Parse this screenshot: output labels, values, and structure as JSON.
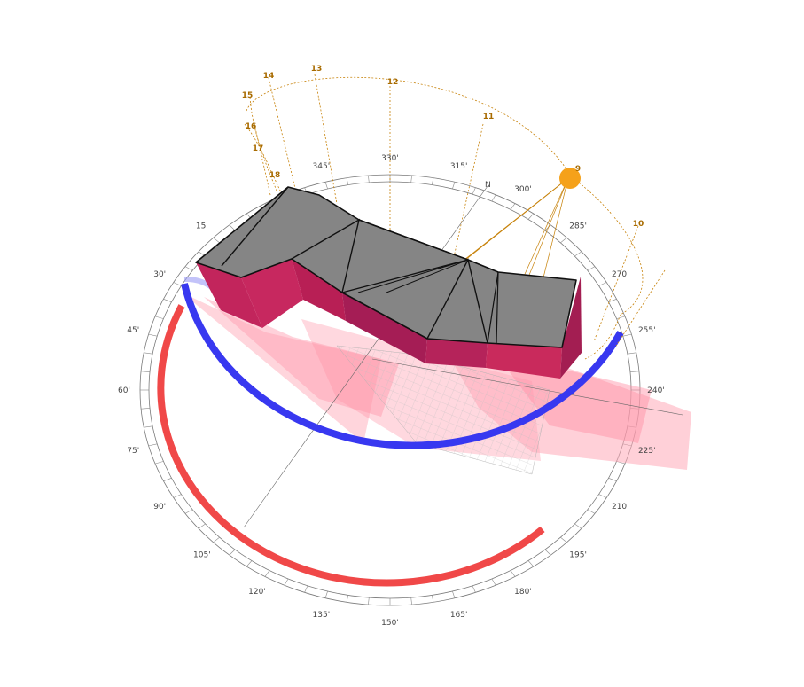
{
  "compass": {
    "north_label": "N",
    "degree_labels": [
      {
        "deg": 15,
        "text": "15'"
      },
      {
        "deg": 30,
        "text": "30'"
      },
      {
        "deg": 45,
        "text": "45'"
      },
      {
        "deg": 60,
        "text": "60'"
      },
      {
        "deg": 75,
        "text": "75'"
      },
      {
        "deg": 90,
        "text": "90'"
      },
      {
        "deg": 105,
        "text": "105'"
      },
      {
        "deg": 120,
        "text": "120'"
      },
      {
        "deg": 135,
        "text": "135'"
      },
      {
        "deg": 150,
        "text": "150'"
      },
      {
        "deg": 165,
        "text": "165'"
      },
      {
        "deg": 180,
        "text": "180'"
      },
      {
        "deg": 195,
        "text": "195'"
      },
      {
        "deg": 210,
        "text": "210'"
      },
      {
        "deg": 225,
        "text": "225'"
      },
      {
        "deg": 240,
        "text": "240'"
      },
      {
        "deg": 255,
        "text": "255'"
      },
      {
        "deg": 270,
        "text": "270'"
      },
      {
        "deg": 285,
        "text": "285'"
      },
      {
        "deg": 300,
        "text": "300'"
      },
      {
        "deg": 315,
        "text": "315'"
      },
      {
        "deg": 330,
        "text": "330'"
      },
      {
        "deg": 345,
        "text": "345'"
      }
    ]
  },
  "sun_path": {
    "hour_labels": [
      "9",
      "10",
      "11",
      "12",
      "13",
      "14",
      "15",
      "16",
      "17",
      "18"
    ]
  },
  "colors": {
    "sun": "#f5a11a",
    "sun_path": "#c7820a",
    "roof": "#858585",
    "wall": "#c2255c",
    "shadow": "#ff8fa3",
    "arc_blue": "#3838f0",
    "arc_red": "#f04848"
  }
}
